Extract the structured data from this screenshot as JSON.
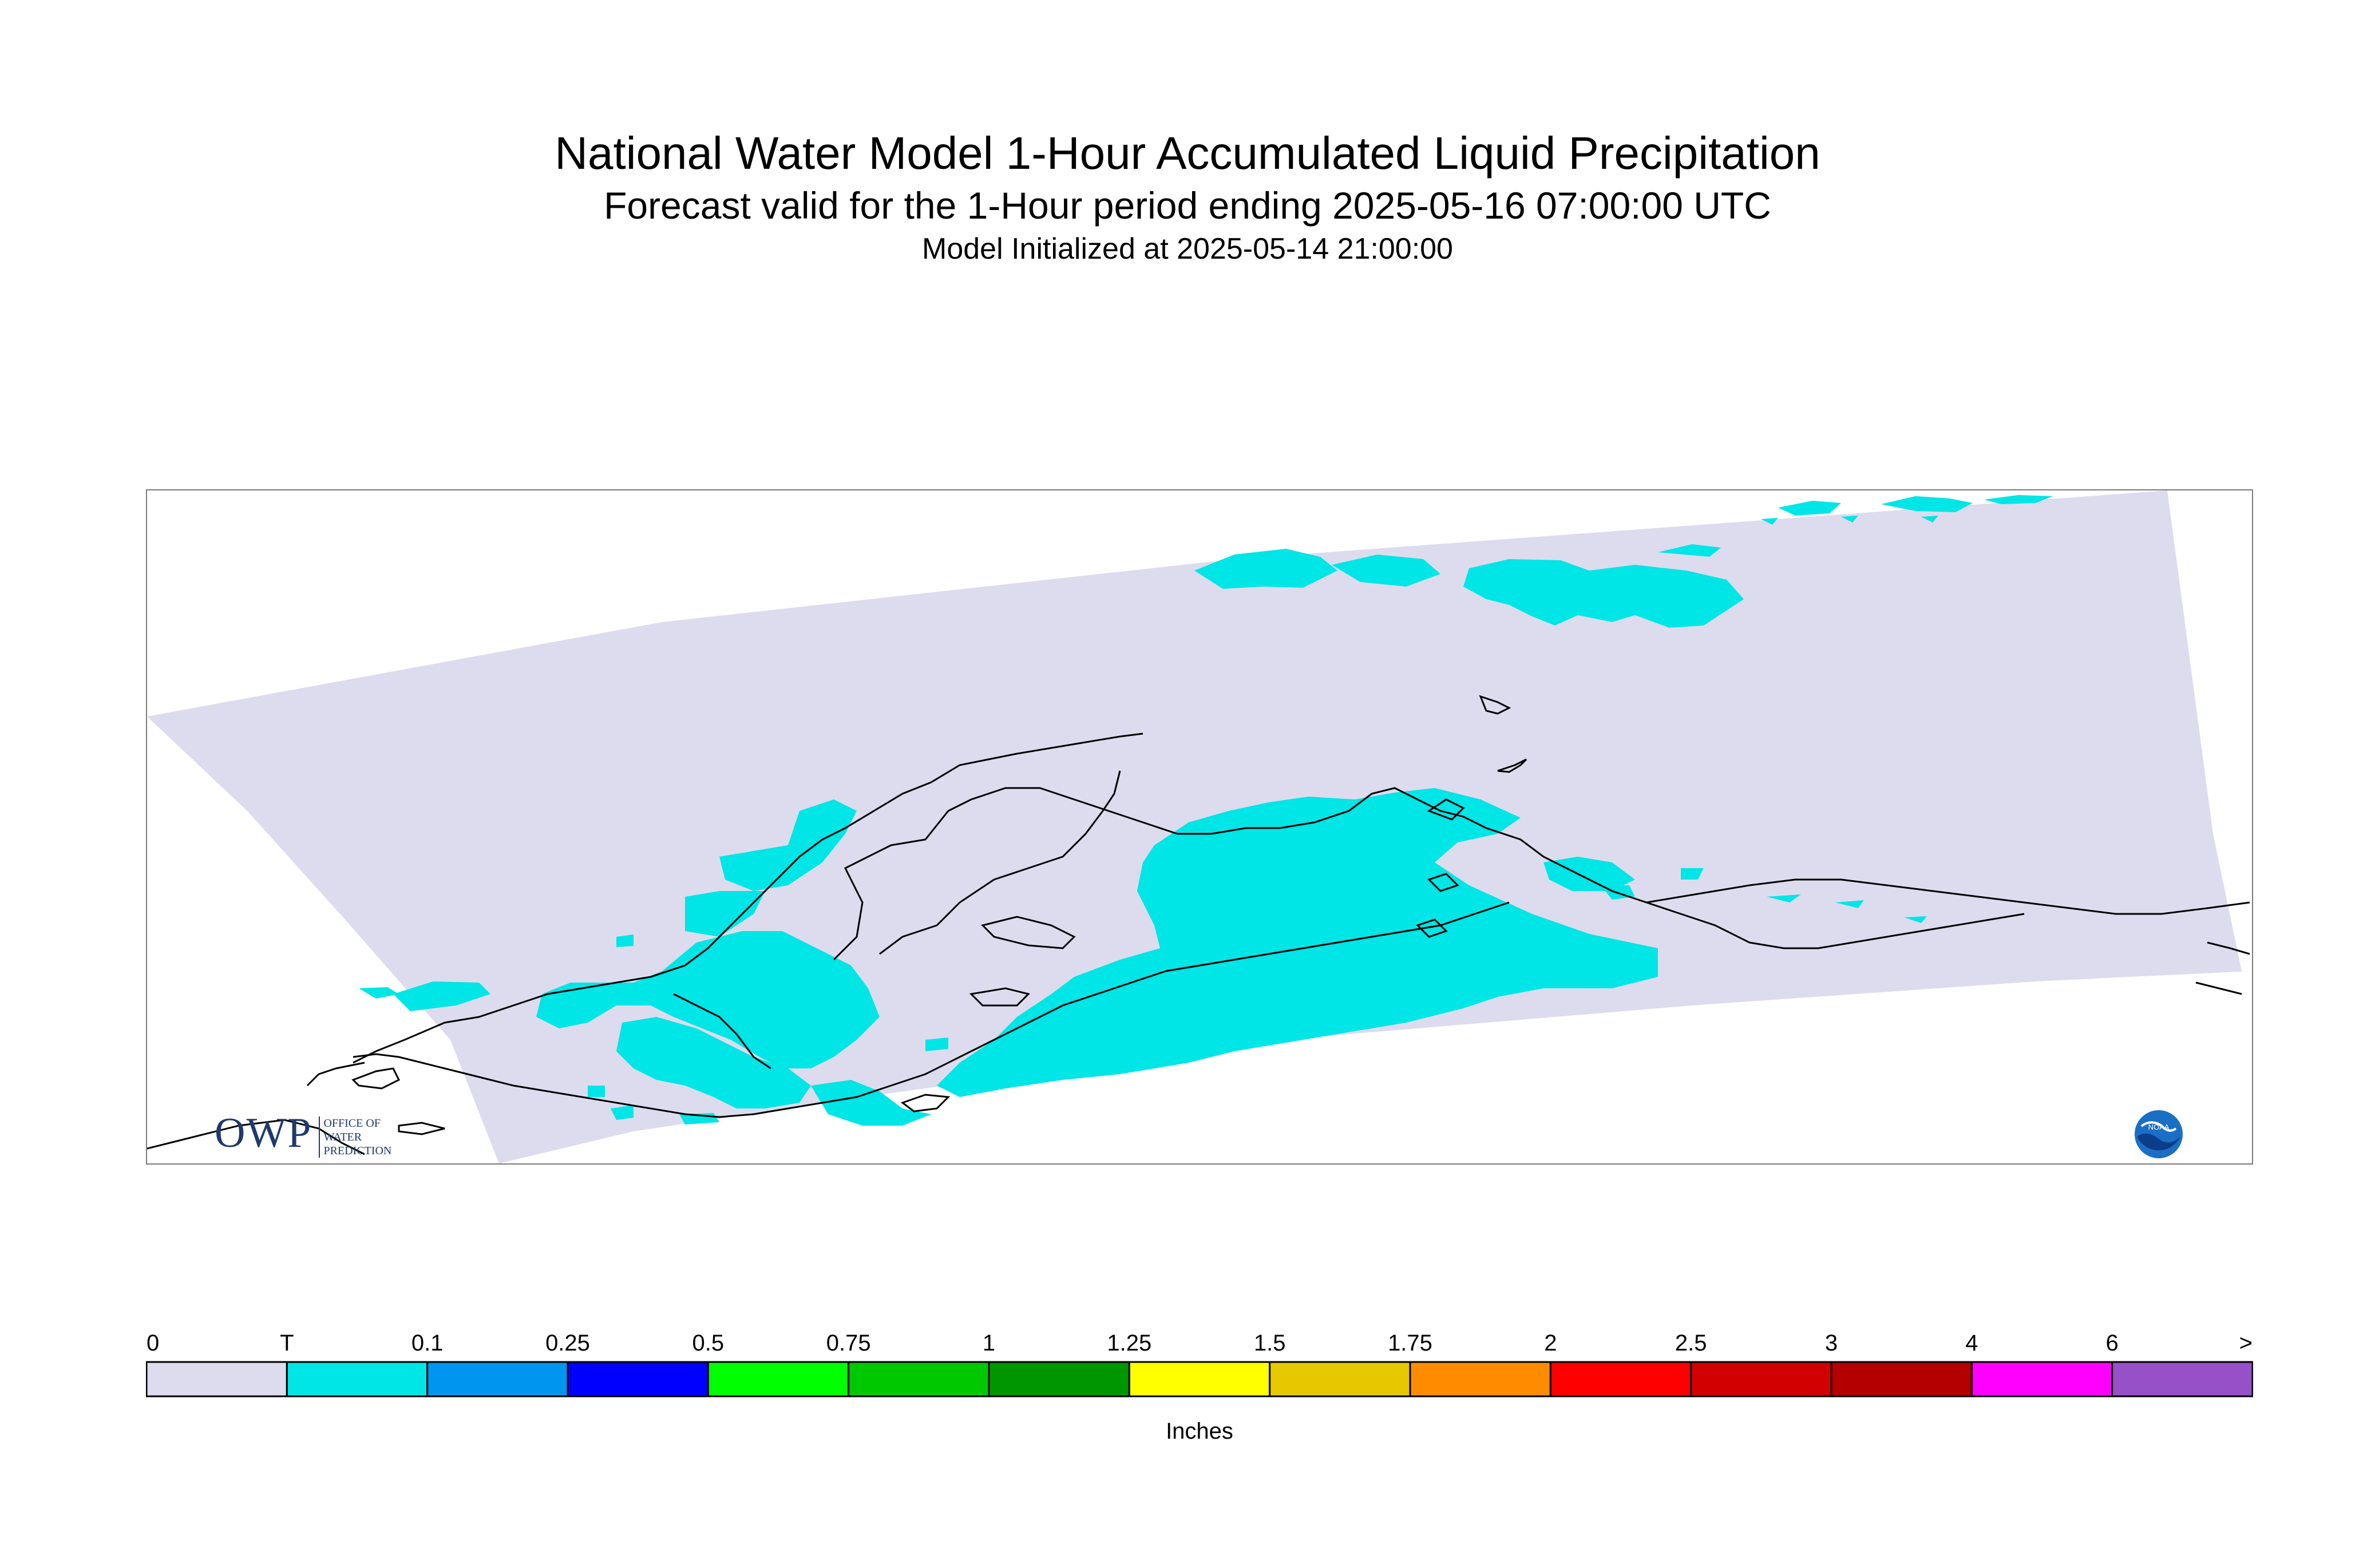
{
  "header": {
    "title": "National Water Model 1-Hour Accumulated Liquid Precipitation",
    "subtitle": "Forecast valid for the 1-Hour period ending 2025-05-16 07:00:00 UTC",
    "initialized": "Model Initialized at 2025-05-14 21:00:00"
  },
  "logos": {
    "owp_mark": "OWP",
    "owp_text": [
      "OFFICE OF",
      "WATER",
      "PREDICTION"
    ],
    "noaa_text": "NOAA"
  },
  "map": {
    "domain_color": "#dcdcee",
    "precip_color": "#00e5e5",
    "coastline_color": "#000000"
  },
  "legend": {
    "unit_label": "Inches",
    "tick_labels": [
      "0",
      "T",
      "0.1",
      "0.25",
      "0.5",
      "0.75",
      "1",
      "1.25",
      "1.5",
      "1.75",
      "2",
      "2.5",
      "3",
      "4",
      "6",
      ">"
    ],
    "colors": [
      "#dcdcee",
      "#00e5e5",
      "#0096f0",
      "#0000ff",
      "#00ff00",
      "#00c800",
      "#009600",
      "#ffff00",
      "#e6c800",
      "#ff8c00",
      "#ff0000",
      "#d20000",
      "#b40000",
      "#ff00ff",
      "#9650c8"
    ]
  }
}
